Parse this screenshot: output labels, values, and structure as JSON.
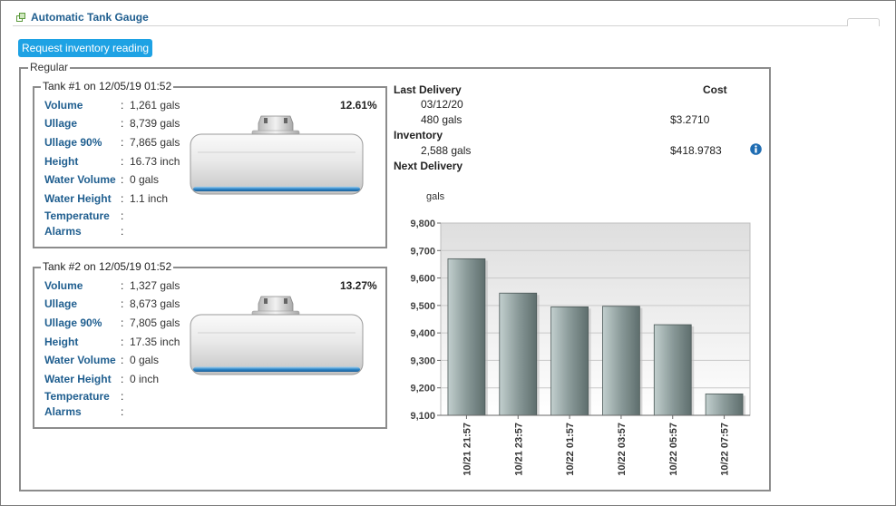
{
  "header": {
    "title": "Automatic Tank Gauge",
    "icon": "stack-icon"
  },
  "actions": {
    "request_label": "Request inventory reading"
  },
  "group": {
    "legend": "Regular"
  },
  "labels": {
    "volume": "Volume",
    "ullage": "Ullage",
    "ullage90": "Ullage 90%",
    "height": "Height",
    "water_volume": "Water Volume",
    "water_height": "Water Height",
    "temperature": "Temperature",
    "alarms": "Alarms",
    "colon": ":"
  },
  "tanks": [
    {
      "legend": "Tank #1 on 12/05/19 01:52",
      "percent_label": "12.61%",
      "fill_fraction": 0.1261,
      "volume": "1,261 gals",
      "ullage": "8,739 gals",
      "ullage90": "7,865 gals",
      "height": "16.73 inch",
      "water_volume": "0 gals",
      "water_height": "1.1 inch",
      "temperature": "",
      "alarms": ""
    },
    {
      "legend": "Tank #2 on 12/05/19 01:52",
      "percent_label": "13.27%",
      "fill_fraction": 0.1327,
      "volume": "1,327 gals",
      "ullage": "8,673 gals",
      "ullage90": "7,805 gals",
      "height": "17.35 inch",
      "water_volume": "0 gals",
      "water_height": "0 inch",
      "temperature": "",
      "alarms": ""
    }
  ],
  "summary": {
    "last_delivery_label": "Last Delivery",
    "cost_header": "Cost",
    "last_delivery_date": "03/12/20",
    "last_delivery_volume": "480 gals",
    "last_delivery_cost": "$3.2710",
    "inventory_label": "Inventory",
    "inventory_volume": "2,588 gals",
    "inventory_cost": "$418.9783",
    "next_delivery_label": "Next Delivery",
    "info_icon": "info-icon"
  },
  "chart_data": {
    "type": "bar",
    "ylabel": "gals",
    "categories": [
      "10/21 21:57",
      "10/21 23:57",
      "10/22 01:57",
      "10/22 03:57",
      "10/22 05:57",
      "10/22 07:57"
    ],
    "values": [
      9670,
      9545,
      9495,
      9497,
      9430,
      9178
    ],
    "ylim": [
      9100,
      9800
    ],
    "yticks": [
      9100,
      9200,
      9300,
      9400,
      9500,
      9600,
      9700,
      9800
    ],
    "ytick_labels": [
      "9,100",
      "9,200",
      "9,300",
      "9,400",
      "9,500",
      "9,600",
      "9,700",
      "9,800"
    ],
    "grid": true,
    "bar_color": "#8a9a99"
  }
}
